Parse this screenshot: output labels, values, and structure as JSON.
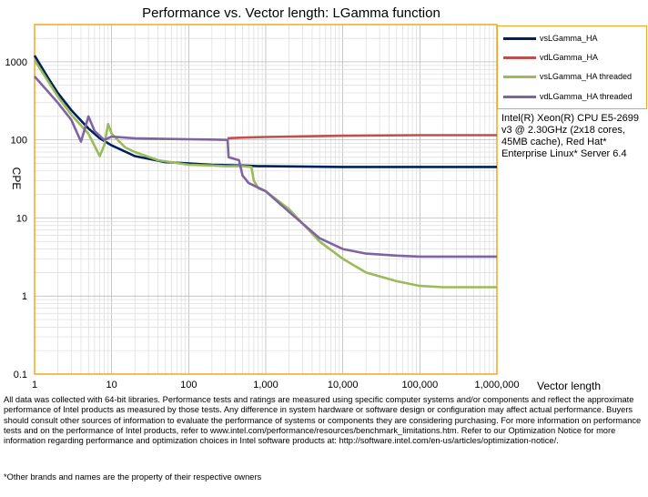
{
  "chart_data": {
    "type": "line",
    "title": "Performance vs. Vector length: LGamma function",
    "xlabel": "Vector length",
    "ylabel": "CPE",
    "x_scale": "log",
    "y_scale": "log",
    "xlim": [
      1,
      1000000
    ],
    "ylim": [
      0.1,
      3000
    ],
    "grid": true,
    "legend_position": "right",
    "x_ticks": [
      {
        "value": 1,
        "label": "1"
      },
      {
        "value": 10,
        "label": "10"
      },
      {
        "value": 100,
        "label": "100"
      },
      {
        "value": 1000,
        "label": "1,000"
      },
      {
        "value": 10000,
        "label": "10,000"
      },
      {
        "value": 100000,
        "label": "100,000"
      },
      {
        "value": 1000000,
        "label": "1,000,000"
      }
    ],
    "y_ticks": [
      {
        "value": 0.1,
        "label": "0.1"
      },
      {
        "value": 1,
        "label": "1"
      },
      {
        "value": 10,
        "label": "10"
      },
      {
        "value": 100,
        "label": "100"
      },
      {
        "value": 1000,
        "label": "1000"
      }
    ],
    "series": [
      {
        "name": "vsLGamma_HA",
        "color": "#002060",
        "x": [
          1,
          1.5,
          2,
          3,
          5,
          7,
          10,
          20,
          50,
          100,
          200,
          500,
          800,
          1000,
          10000,
          100000,
          1000000
        ],
        "y": [
          1200,
          620,
          400,
          240,
          140,
          105,
          85,
          62,
          52,
          50,
          48,
          47,
          46,
          46,
          45,
          45,
          45
        ]
      },
      {
        "name": "vdLGamma_HA",
        "color": "#c0504d",
        "x": [
          320,
          500,
          1000,
          3000,
          10000,
          100000,
          1000000
        ],
        "y": [
          105,
          107,
          109,
          111,
          113,
          115,
          115
        ]
      },
      {
        "name": "vsLGamma_HA threaded",
        "color": "#9bbb59",
        "x": [
          1,
          2,
          3,
          5,
          7,
          8,
          9,
          10,
          15,
          20,
          40,
          100,
          200,
          300,
          500,
          650,
          700,
          800,
          1000,
          2000,
          3000,
          5000,
          10000,
          20000,
          50000,
          100000,
          200000,
          1000000
        ],
        "y": [
          1050,
          360,
          210,
          120,
          62,
          85,
          160,
          120,
          80,
          70,
          55,
          48,
          47,
          46,
          46,
          45,
          30,
          24,
          22,
          13,
          8.5,
          5,
          3,
          2,
          1.55,
          1.35,
          1.3,
          1.3
        ]
      },
      {
        "name": "vdLGamma_HA threaded",
        "color": "#8064a2",
        "x": [
          1,
          2,
          3,
          4,
          5,
          6,
          8,
          10,
          20,
          50,
          100,
          200,
          320,
          330,
          450,
          500,
          600,
          1000,
          2000,
          3000,
          5000,
          10000,
          20000,
          50000,
          100000,
          1000000
        ],
        "y": [
          650,
          300,
          180,
          95,
          200,
          130,
          100,
          110,
          105,
          103,
          102,
          101,
          100,
          60,
          55,
          35,
          28,
          22,
          12,
          8.5,
          5.5,
          4,
          3.5,
          3.3,
          3.2,
          3.2
        ]
      }
    ]
  },
  "cpu_note": "Intel(R) Xeon(R) CPU E5-2699 v3 @ 2.30GHz (2x18 cores, 45MB cache), Red Hat* Enterprise Linux* Server 6.4",
  "footnote": "All data was collected with 64-bit libraries. Performance tests and ratings are measured using specific computer systems and/or components and reflect the approximate performance of Intel products as measured by those tests. Any difference in system hardware or software design or configuration may affect actual performance. Buyers should consult other sources of information to evaluate the performance of systems or components they are considering purchasing. For more information on performance tests and on the performance of Intel products, refer to www.intel.com/performance/resources/benchmark_limitations.htm. Refer to our Optimization Notice for more information regarding performance and optimization choices in Intel software products at: http://software.intel.com/en-us/articles/optimization-notice/.",
  "trademark": "*Other brands and names are the property of their respective owners"
}
